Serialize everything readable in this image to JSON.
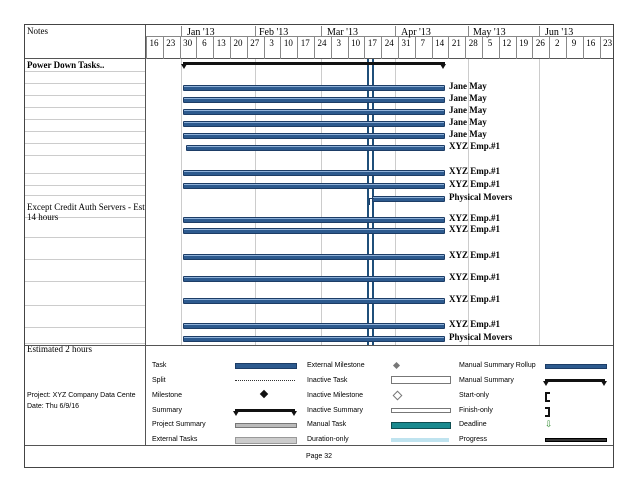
{
  "header": {
    "notes_label": "Notes",
    "months": [
      "Jan '13",
      "Feb '13",
      "Mar '13",
      "Apr '13",
      "May '13",
      "Jun '13"
    ],
    "days": [
      "16",
      "23",
      "30",
      "6",
      "13",
      "20",
      "27",
      "3",
      "10",
      "17",
      "24",
      "3",
      "10",
      "17",
      "24",
      "31",
      "7",
      "14",
      "21",
      "28",
      "5",
      "12",
      "19",
      "26",
      "2",
      "9",
      "16",
      "23"
    ]
  },
  "notes_column": {
    "title": "Power Down Tasks..",
    "note_1": "Except Credit Auth Servers - Est 14 hours",
    "note_2": "Estimated 2 hours"
  },
  "bars": [
    {
      "label": "Jane May"
    },
    {
      "label": "Jane May"
    },
    {
      "label": "Jane May"
    },
    {
      "label": "Jane May"
    },
    {
      "label": "Jane May"
    },
    {
      "label": "XYZ Emp.#1"
    },
    {
      "label": "XYZ Emp.#1"
    },
    {
      "label": "XYZ Emp.#1"
    },
    {
      "label": "Physical Movers"
    },
    {
      "label": "XYZ Emp.#1"
    },
    {
      "label": "XYZ Emp.#1"
    },
    {
      "label": "XYZ Emp.#1"
    },
    {
      "label": "XYZ Emp.#1"
    },
    {
      "label": "XYZ Emp.#1"
    },
    {
      "label": "XYZ Emp.#1"
    },
    {
      "label": "Physical Movers"
    }
  ],
  "project": {
    "name": "Project: XYZ Company Data Cente",
    "date": "Date: Thu 6/9/16"
  },
  "legend": {
    "col1": [
      "Task",
      "Split",
      "Milestone",
      "Summary",
      "Project Summary",
      "External Tasks"
    ],
    "col2": [
      "External Milestone",
      "Inactive Task",
      "Inactive Milestone",
      "Inactive Summary",
      "Manual Task",
      "Duration-only"
    ],
    "col3": [
      "Manual Summary Rollup",
      "Manual Summary",
      "Start-only",
      "Finish-only",
      "Deadline",
      "Progress"
    ]
  },
  "footer": {
    "page": "Page 32"
  },
  "colors": {
    "task_bar": "#2d5a8e",
    "current_date_line": "#1f4f7a",
    "manual_task": "#1a8a8f"
  }
}
